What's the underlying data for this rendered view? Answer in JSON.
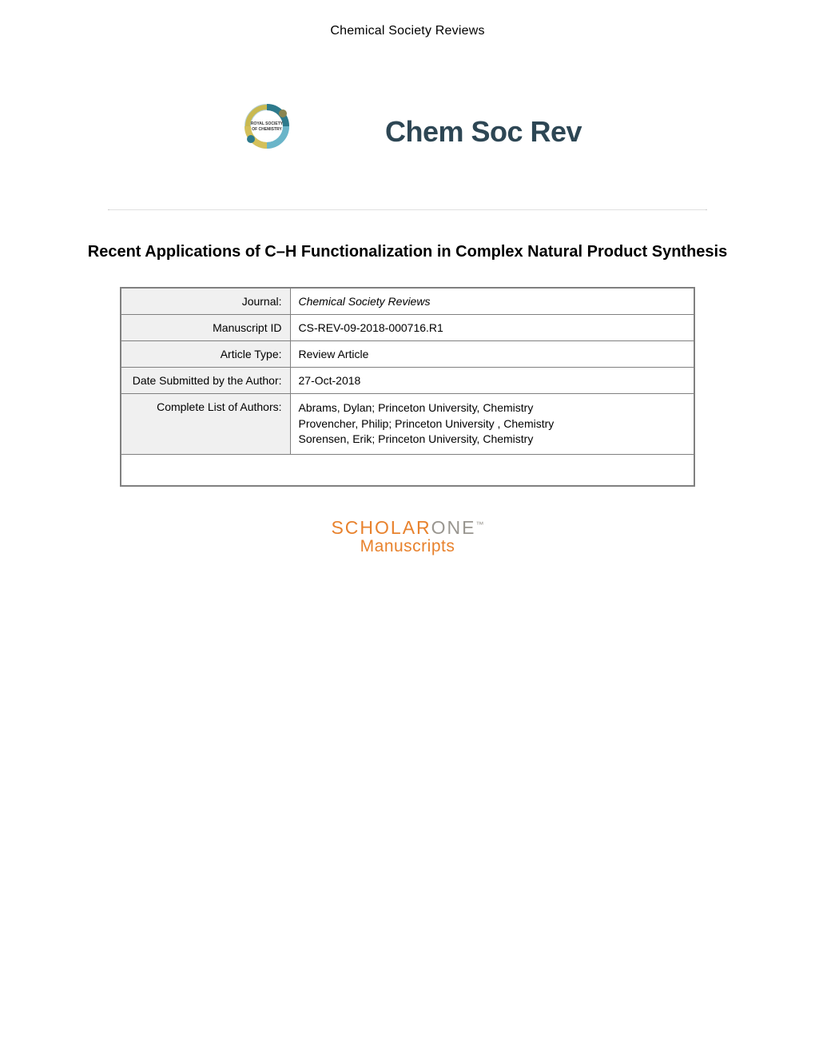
{
  "header": {
    "journal_name": "Chemical Society Reviews"
  },
  "logos": {
    "rsc_text_top": "ROYAL SOCIETY",
    "rsc_text_bottom": "OF CHEMISTRY",
    "journal_brand": "Chem Soc Rev"
  },
  "article": {
    "title": "Recent Applications of C–H Functionalization in Complex Natural Product Synthesis"
  },
  "table": {
    "rows": [
      {
        "label": "Journal:",
        "value": "Chemical Society Reviews",
        "italic": true
      },
      {
        "label": "Manuscript ID",
        "value": "CS-REV-09-2018-000716.R1",
        "italic": false
      },
      {
        "label": "Article Type:",
        "value": "Review Article",
        "italic": false
      },
      {
        "label": "Date Submitted by the Author:",
        "value": "27-Oct-2018",
        "italic": false
      }
    ],
    "authors_label": "Complete List of Authors:",
    "authors": [
      "Abrams, Dylan; Princeton University, Chemistry",
      "Provencher, Philip; Princeton University , Chemistry",
      "Sorensen, Erik; Princeton University, Chemistry"
    ]
  },
  "footer": {
    "brand_part1": "SCHOLAR",
    "brand_part2": "ONE",
    "brand_tm": "™",
    "brand_sub": "Manuscripts"
  },
  "colors": {
    "text_dark": "#000000",
    "journal_logo": "#2d4654",
    "table_border": "#808080",
    "label_bg": "#f0f0f0",
    "scholarone_orange": "#e8822d",
    "scholarone_gray": "#999690"
  }
}
